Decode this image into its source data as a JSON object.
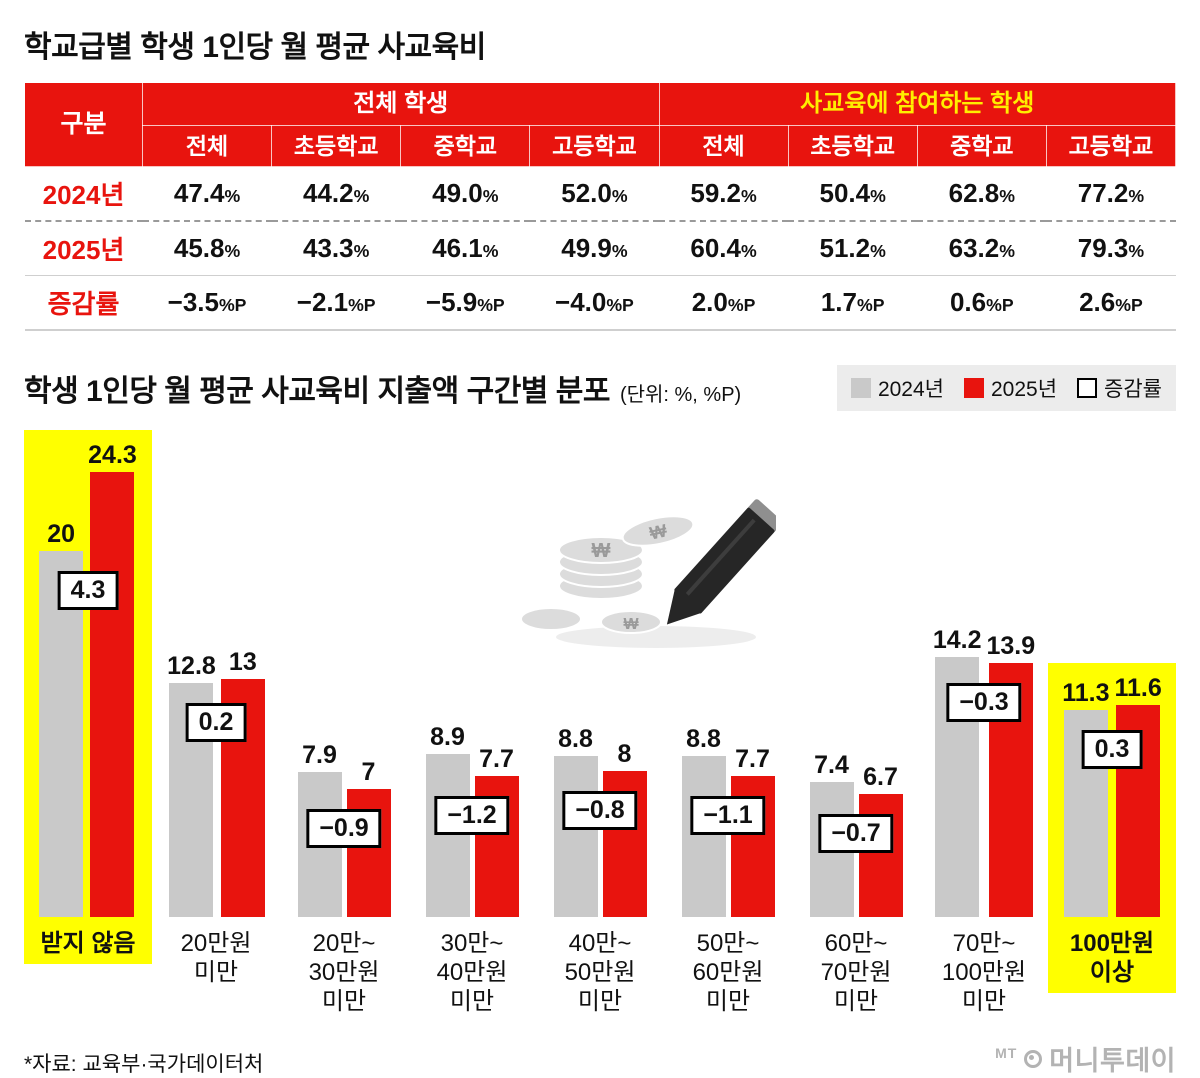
{
  "colors": {
    "red": "#e8140e",
    "gray": "#c9c9c9",
    "yellow_text": "#ffee00",
    "highlight_yellow": "#ffff00",
    "logo_gray": "#b3b3b3"
  },
  "table_section": {
    "title": "학교급별 학생 1인당 월 평균 사교육비",
    "table": {
      "corner_label": "구분",
      "groups": [
        {
          "label": "전체 학생",
          "text_color": "#ffffff"
        },
        {
          "label": "사교육에 참여하는 학생",
          "text_color": "#ffee00"
        }
      ],
      "subheaders": [
        "전체",
        "초등학교",
        "중학교",
        "고등학교",
        "전체",
        "초등학교",
        "중학교",
        "고등학교"
      ],
      "rows": [
        {
          "label": "2024년",
          "values": [
            "47.4%",
            "44.2%",
            "49.0%",
            "52.0%",
            "59.2%",
            "50.4%",
            "62.8%",
            "77.2%"
          ]
        },
        {
          "label": "2025년",
          "values": [
            "45.8%",
            "43.3%",
            "46.1%",
            "49.9%",
            "60.4%",
            "51.2%",
            "63.2%",
            "79.3%"
          ]
        },
        {
          "label": "증감률",
          "values": [
            "−3.5%P",
            "−2.1%P",
            "−5.9%P",
            "−4.0%P",
            "2.0%P",
            "1.7%P",
            "0.6%P",
            "2.6%P"
          ]
        }
      ]
    }
  },
  "chart_section": {
    "title": "학생 1인당 월 평균 사교육비 지출액 구간별 분포",
    "unit_note": "(단위: %, %P)",
    "legend": [
      {
        "label": "2024년",
        "swatch": "gray"
      },
      {
        "label": "2025년",
        "swatch": "red"
      },
      {
        "label": "증감률",
        "swatch": "outline"
      }
    ],
    "illustration": {
      "name": "coins-and-pencil",
      "symbol": "₩"
    }
  },
  "chart_data": {
    "type": "bar",
    "title": "학생 1인당 월 평균 사교육비 지출액 구간별 분포",
    "xlabel": "",
    "ylabel": "",
    "ylim": [
      0,
      25
    ],
    "grid": false,
    "legend_position": "top-right",
    "categories": [
      "받지 않음",
      "20만원\n미만",
      "20만~\n30만원\n미만",
      "30만~\n40만원\n미만",
      "40만~\n50만원\n미만",
      "50만~\n60만원\n미만",
      "60만~\n70만원\n미만",
      "70만~\n100만원\n미만",
      "100만원\n이상"
    ],
    "series": [
      {
        "name": "2024년",
        "color": "#c9c9c9",
        "values": [
          20,
          12.8,
          7.9,
          8.9,
          8.8,
          8.8,
          7.4,
          14.2,
          11.3
        ]
      },
      {
        "name": "2025년",
        "color": "#e8140e",
        "values": [
          24.3,
          13,
          7,
          7.7,
          8,
          7.7,
          6.7,
          13.9,
          11.6
        ]
      }
    ],
    "change": [
      4.3,
      0.2,
      -0.9,
      -1.2,
      -0.8,
      -1.1,
      -0.7,
      -0.3,
      0.3
    ],
    "change_labels": [
      "4.3",
      "0.2",
      "−0.9",
      "−1.2",
      "−0.8",
      "−1.1",
      "−0.7",
      "−0.3",
      "0.3"
    ],
    "highlighted": [
      0,
      8
    ]
  },
  "footer": {
    "source": "*자료: 교육부·국가데이터처",
    "logo": {
      "prefix": "MT",
      "name": "머니투데이"
    }
  }
}
